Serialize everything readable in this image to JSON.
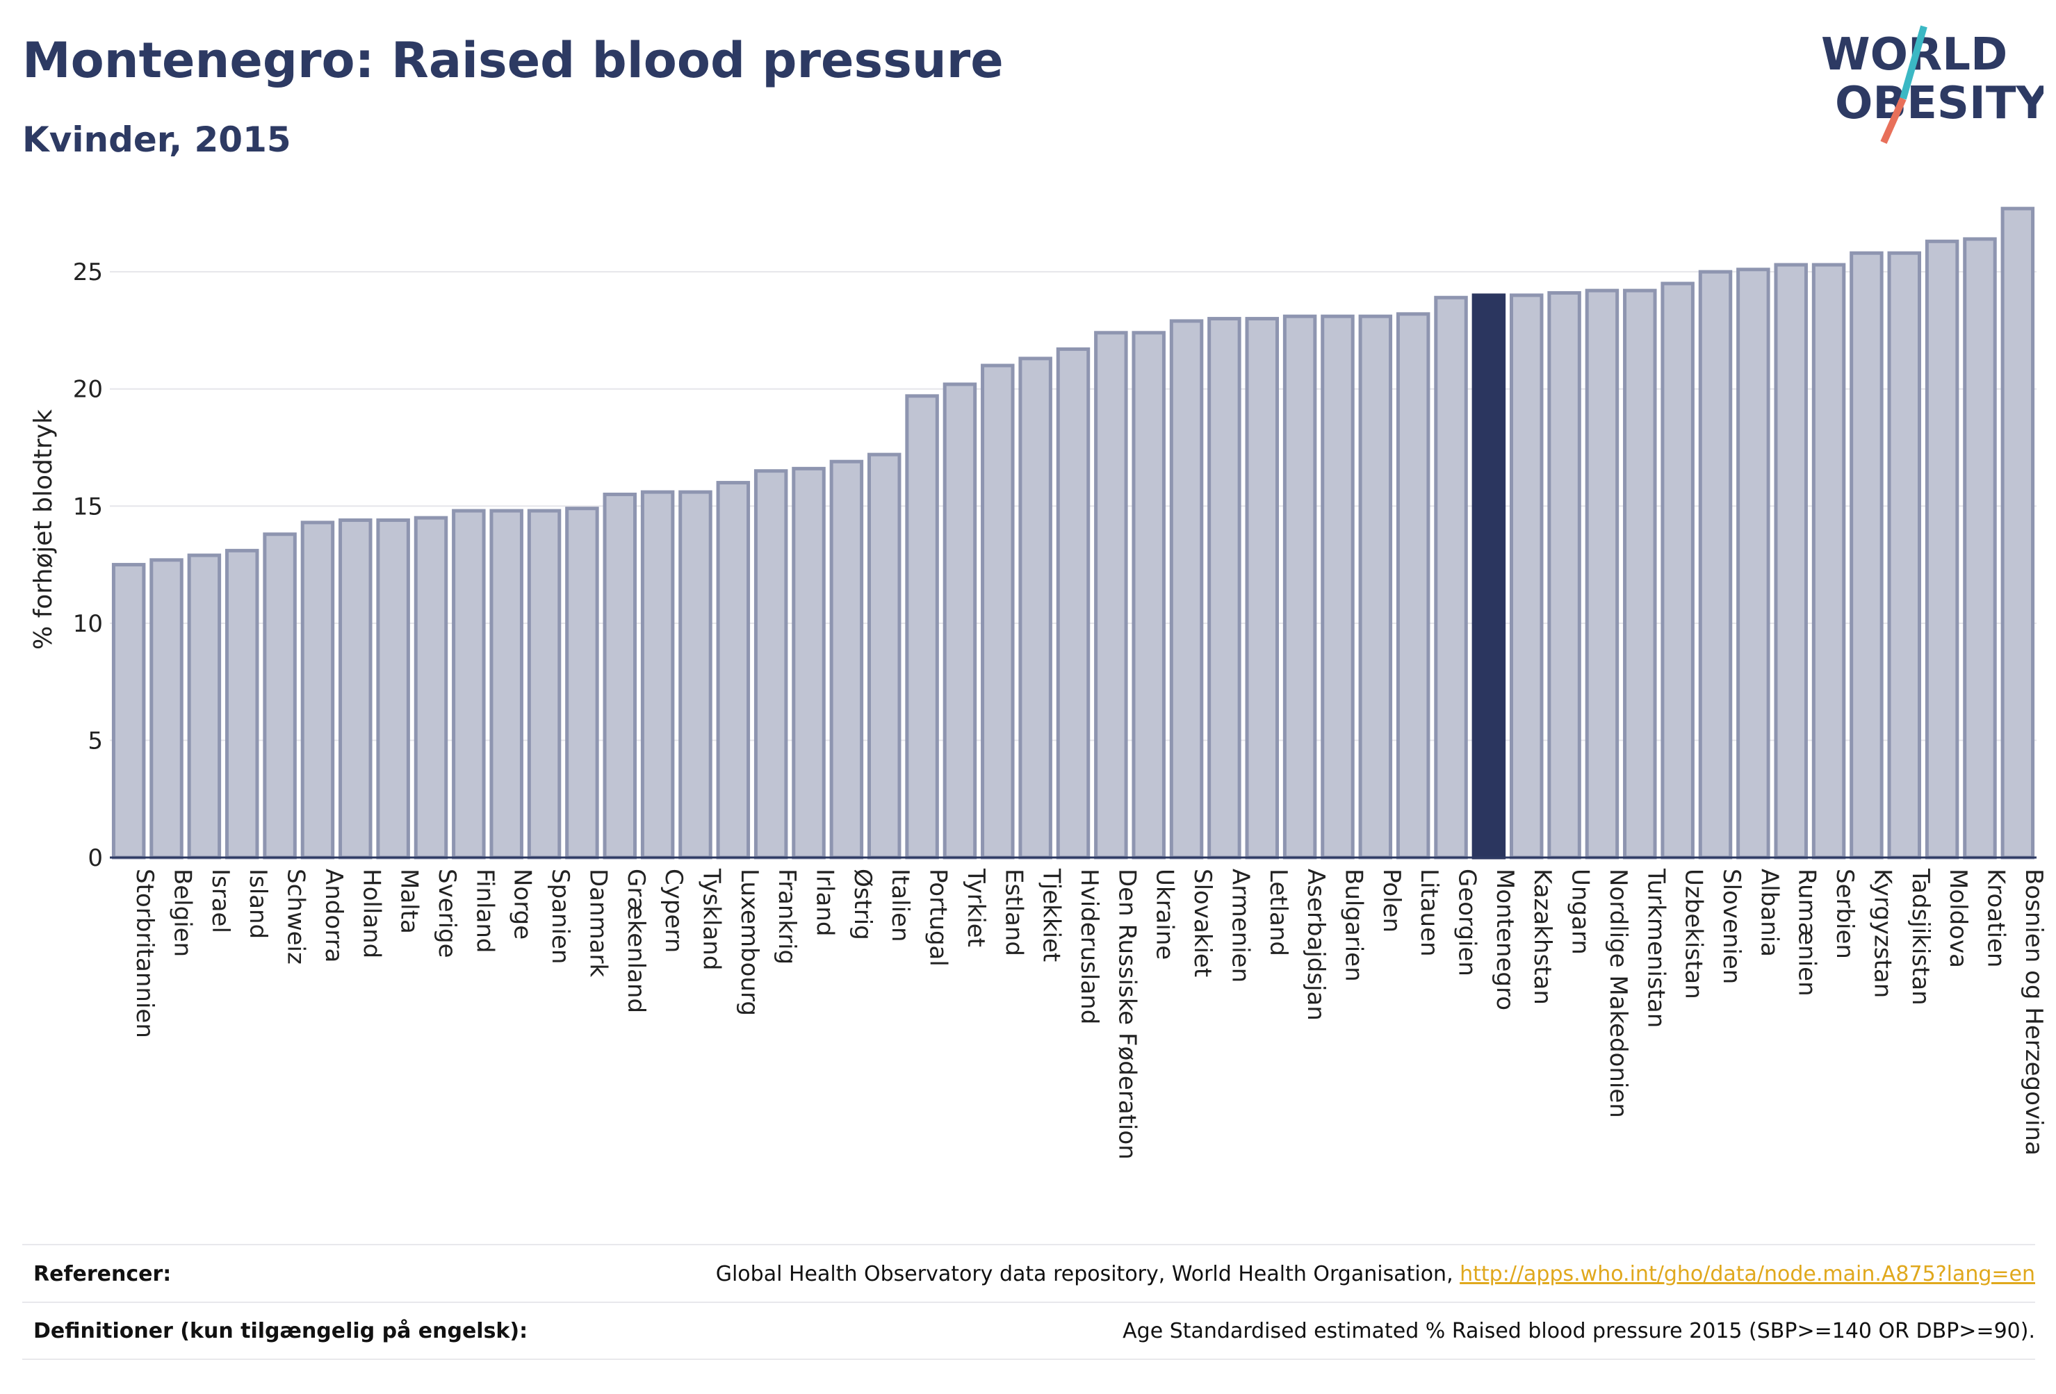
{
  "title": "Montenegro: Raised blood pressure",
  "subtitle": "Kvinder, 2015",
  "logo": {
    "line1": "WORLD",
    "line2": "OBESITY"
  },
  "colors": {
    "bar": "#c0c4d3",
    "bar_edge": "#8e95b0",
    "highlight": "#2b365f",
    "title": "#2d3a63",
    "link": "#e0a81d",
    "logo_slash_top": "#3bb8c4",
    "logo_slash_bottom": "#e8705a"
  },
  "chart_data": {
    "type": "bar",
    "ylabel": "% forhøjet blodtryk",
    "ylim": [
      0,
      28
    ],
    "yticks": [
      0,
      5,
      10,
      15,
      20,
      25
    ],
    "highlight": "Montenegro",
    "grid": true,
    "categories": [
      "Storbritannien",
      "Belgien",
      "Israel",
      "Island",
      "Schweiz",
      "Andorra",
      "Holland",
      "Malta",
      "Sverige",
      "Finland",
      "Norge",
      "Spanien",
      "Danmark",
      "Grækenland",
      "Cypern",
      "Tyskland",
      "Luxembourg",
      "Frankrig",
      "Irland",
      "Østrig",
      "Italien",
      "Portugal",
      "Tyrkiet",
      "Estland",
      "Tjekkiet",
      "Hviderusland",
      "Den Russiske Føderation",
      "Ukraine",
      "Slovakiet",
      "Armenien",
      "Letland",
      "Aserbajdsjan",
      "Bulgarien",
      "Polen",
      "Litauen",
      "Georgien",
      "Montenegro",
      "Kazakhstan",
      "Ungarn",
      "Nordlige Makedonien",
      "Turkmenistan",
      "Uzbekistan",
      "Slovenien",
      "Albania",
      "Rumænien",
      "Serbien",
      "Kyrgyzstan",
      "Tadsjikistan",
      "Moldova",
      "Kroatien",
      "Bosnien og Herzegovina"
    ],
    "values": [
      12.5,
      12.7,
      12.9,
      13.1,
      13.8,
      14.3,
      14.4,
      14.4,
      14.5,
      14.8,
      14.8,
      14.8,
      14.9,
      15.5,
      15.6,
      15.6,
      16.0,
      16.5,
      16.6,
      16.9,
      17.2,
      19.7,
      20.2,
      21.0,
      21.3,
      21.7,
      22.4,
      22.4,
      22.9,
      23.0,
      23.0,
      23.1,
      23.1,
      23.1,
      23.2,
      23.9,
      24.0,
      24.0,
      24.1,
      24.2,
      24.2,
      24.5,
      25.0,
      25.1,
      25.3,
      25.3,
      25.8,
      25.8,
      26.3,
      26.4,
      27.7
    ]
  },
  "footer": {
    "ref_label": "Referencer:",
    "ref_text": "Global Health Observatory data repository, World Health Organisation, ",
    "ref_link": "http://apps.who.int/gho/data/node.main.A875?lang=en",
    "def_label": "Definitioner (kun tilgængelig på engelsk):",
    "def_text": "Age Standardised estimated % Raised blood pressure 2015 (SBP>=140 OR DBP>=90)."
  }
}
